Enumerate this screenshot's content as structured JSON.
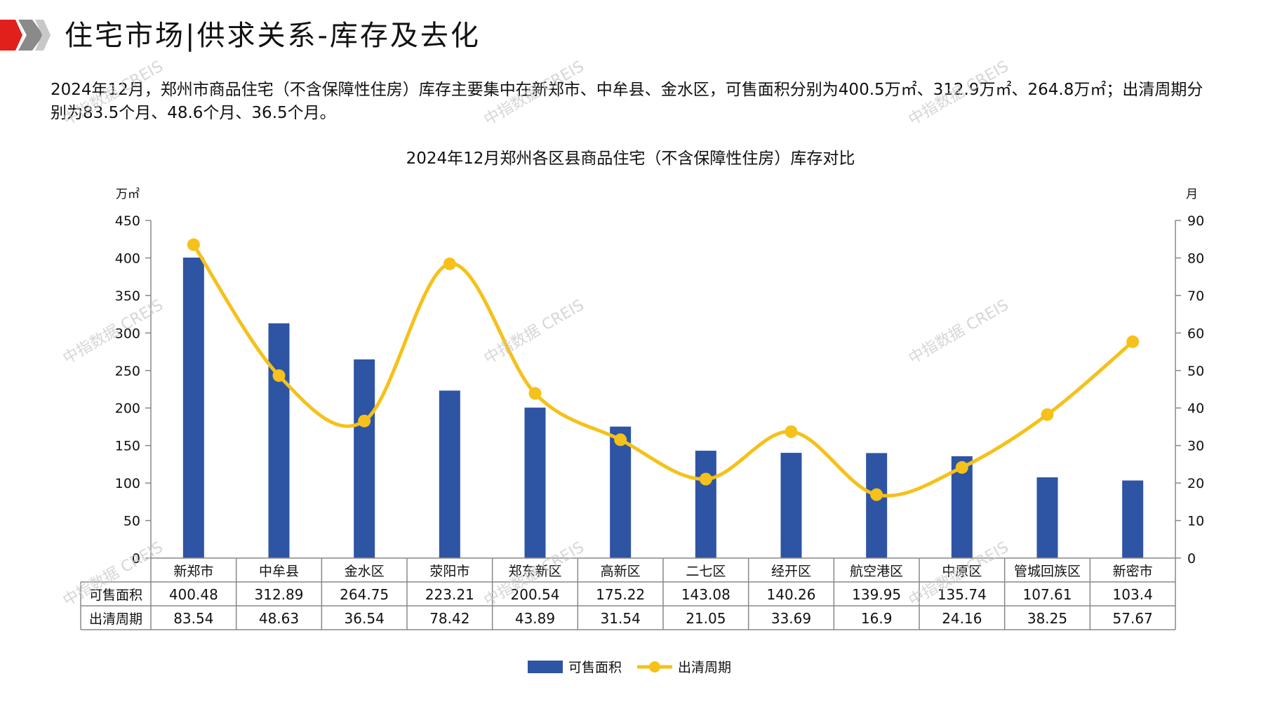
{
  "header": {
    "title": "住宅市场|供求关系-库存及去化"
  },
  "summary": {
    "text": "2024年12月，郑州市商品住宅（不含保障性住房）库存主要集中在新郑市、中牟县、金水区，可售面积分别为400.5万㎡、312.9万㎡、264.8万㎡；出清周期分别为83.5个月、48.6个月、36.5个月。"
  },
  "watermark": {
    "text": "中指数据 CREIS"
  },
  "colors": {
    "bar": "#2E54A4",
    "line": "#F5C11A",
    "logo_red": "#E1201C",
    "logo_gray": "#8A8A8A"
  },
  "chart_data": {
    "type": "bar",
    "title": "2024年12月郑州各区县商品住宅（不含保障性住房）库存对比",
    "y_left_unit": "万㎡",
    "y_right_unit": "月",
    "ylim_left": [
      0,
      450
    ],
    "ylim_right": [
      0,
      90
    ],
    "y_left_ticks": [
      0,
      50,
      100,
      150,
      200,
      250,
      300,
      350,
      400,
      450
    ],
    "y_right_ticks": [
      0,
      10,
      20,
      30,
      40,
      50,
      60,
      70,
      80,
      90
    ],
    "categories": [
      "新郑市",
      "中牟县",
      "金水区",
      "荥阳市",
      "郑东新区",
      "高新区",
      "二七区",
      "经开区",
      "航空港区",
      "中原区",
      "管城回族区",
      "新密市"
    ],
    "series": [
      {
        "name": "可售面积",
        "type": "bar",
        "axis": "left",
        "values": [
          400.48,
          312.89,
          264.75,
          223.21,
          200.54,
          175.22,
          143.08,
          140.26,
          139.95,
          135.74,
          107.61,
          103.4
        ],
        "labels": [
          "400.48",
          "312.89",
          "264.75",
          "223.21",
          "200.54",
          "175.22",
          "143.08",
          "140.26",
          "139.95",
          "135.74",
          "107.61",
          "103.4"
        ]
      },
      {
        "name": "出清周期",
        "type": "line",
        "axis": "right",
        "smooth": true,
        "values": [
          83.54,
          48.63,
          36.54,
          78.42,
          43.89,
          31.54,
          21.05,
          33.69,
          16.9,
          24.16,
          38.25,
          57.67
        ],
        "labels": [
          "83.54",
          "48.63",
          "36.54",
          "78.42",
          "43.89",
          "31.54",
          "21.05",
          "33.69",
          "16.9",
          "24.16",
          "38.25",
          "57.67"
        ]
      }
    ],
    "data_table": true,
    "legend_position": "bottom-center"
  }
}
